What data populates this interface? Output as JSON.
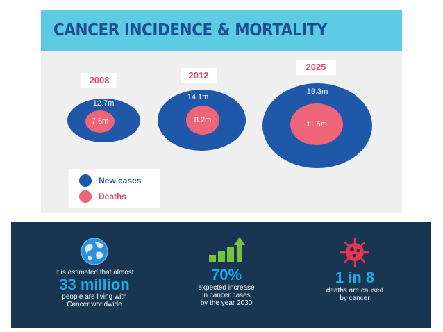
{
  "chart_data": {
    "type": "bubble",
    "title": "CANCER INCIDENCE & MORTALITY",
    "categories": [
      "2008",
      "2012",
      "2025"
    ],
    "series": [
      {
        "name": "New cases",
        "values": [
          12.7,
          14.1,
          19.3
        ],
        "labels": [
          "12.7m",
          "14.1m",
          "19.3m"
        ],
        "color": "#1f58a8"
      },
      {
        "name": "Deaths",
        "values": [
          7.6,
          8.2,
          11.5
        ],
        "labels": [
          "7.6m",
          "8.2m",
          "11.5m"
        ],
        "color": "#ee6478"
      }
    ],
    "legend_position": "bottom-left"
  },
  "colors": {
    "title_bar": "#5ccbe3",
    "title_text": "#1e4f93",
    "new_cases": "#1f58a8",
    "deaths": "#ee6478",
    "year_text": "#e0465d",
    "bottom_bg": "#183651",
    "accent": "#1fa9e6"
  },
  "stats": {
    "globe": {
      "icon": "globe-icon",
      "intro": "It is estimated that almost",
      "big": "33 million",
      "line1": "people are living with",
      "line2": "Cancer worldwide"
    },
    "growth": {
      "icon": "bar-growth-icon",
      "big": "70%",
      "line1": "expected increase",
      "line2": "in cancer cases",
      "line3": "by the year 2030"
    },
    "ratio": {
      "icon": "virus-cell-icon",
      "big": "1 in 8",
      "line1": "deaths are caused",
      "line2": "by cancer"
    }
  }
}
